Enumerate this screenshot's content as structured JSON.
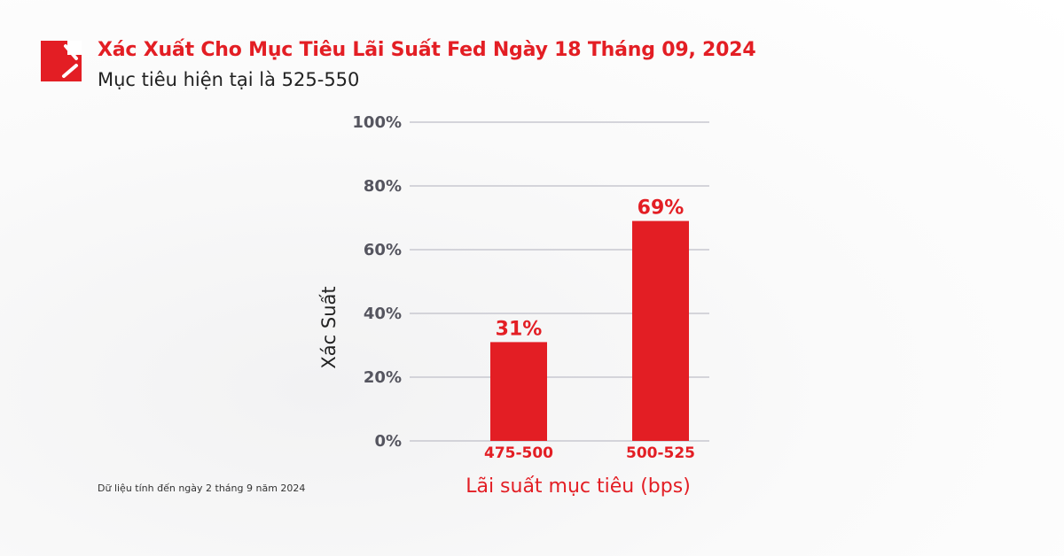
{
  "header": {
    "title": "Xác Xuất Cho Mục Tiêu Lãi Suất Fed Ngày 18 Tháng 09, 2024",
    "subtitle": "Mục tiêu hiện tại là 525-550"
  },
  "footnote": "Dữ liệu tính đến ngày 2 tháng 9 năm 2024",
  "colors": {
    "accent": "#e31e24",
    "grid": "#c8c8d0"
  },
  "chart_data": {
    "type": "bar",
    "categories": [
      "475-500",
      "500-525"
    ],
    "values": [
      31,
      69
    ],
    "data_labels": [
      "31%",
      "69%"
    ],
    "xlabel": "Lãi suất mục tiêu (bps)",
    "ylabel": "Xác Suất",
    "ylim": [
      0,
      100
    ],
    "yticks": [
      "0%",
      "20%",
      "40%",
      "60%",
      "80%",
      "100%"
    ],
    "grid": true
  }
}
